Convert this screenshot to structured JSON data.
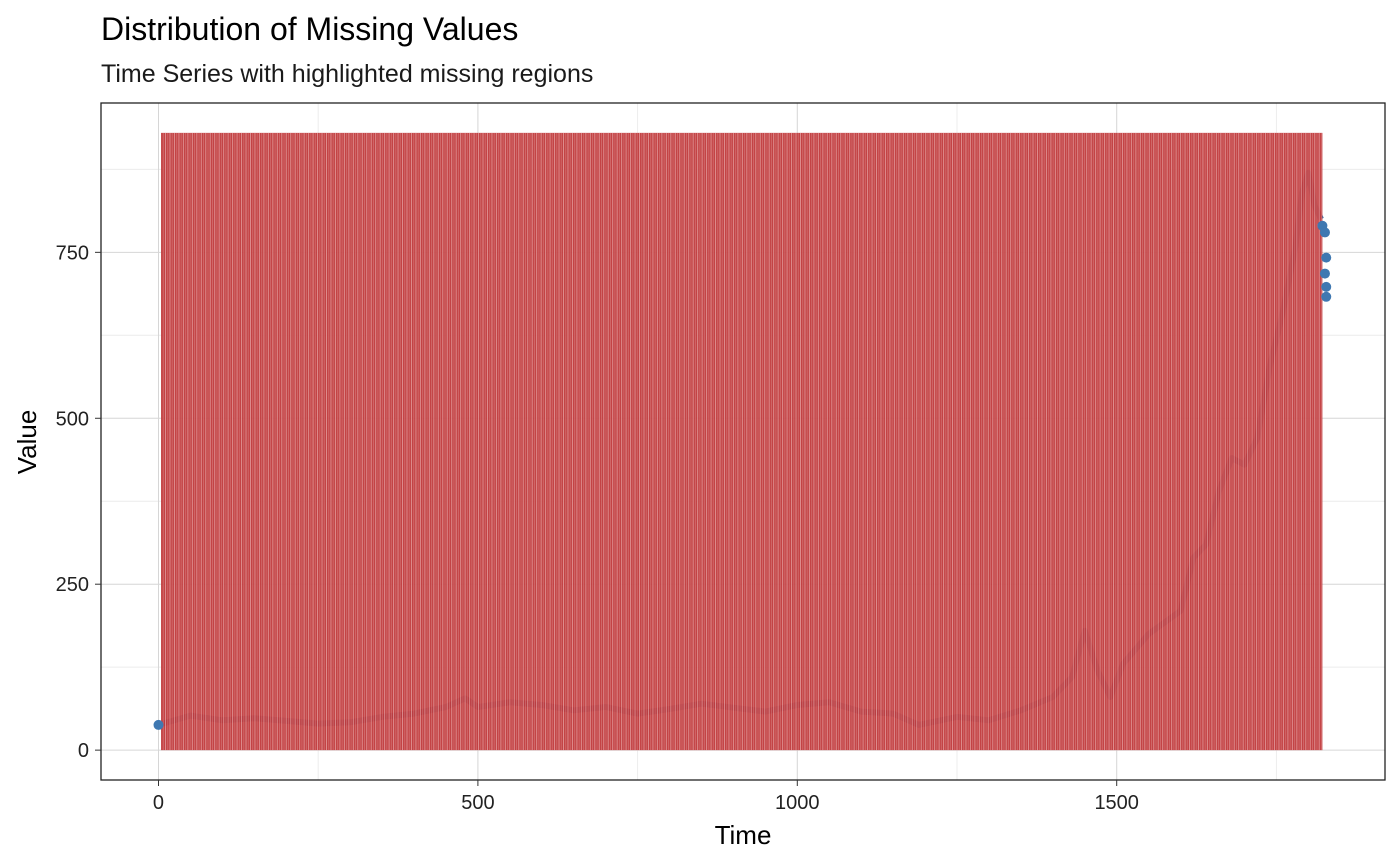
{
  "chart_data": {
    "type": "scatter",
    "title": "Distribution of Missing Values",
    "subtitle": "Time Series with highlighted missing regions",
    "xlabel": "Time",
    "ylabel": "Value",
    "xlim": [
      -90,
      1920
    ],
    "ylim": [
      -45,
      975
    ],
    "x_ticks": [
      0,
      500,
      1000,
      1500
    ],
    "x_tick_labels": [
      "0",
      "500",
      "1000",
      "1500"
    ],
    "y_ticks": [
      0,
      250,
      500,
      750
    ],
    "y_tick_labels": [
      "0",
      "250",
      "500",
      "750"
    ],
    "grid": true,
    "colors": {
      "missing_region": "#c0393b",
      "point": "#3f78b1",
      "background": "#ffffff",
      "grid": "#d6d6d6",
      "grid_minor": "#ececec"
    },
    "missing_regions": {
      "x_start": 4,
      "x_end": 1822,
      "y_top": 930,
      "period": 3.5,
      "gap_period": 7
    },
    "series": [
      {
        "x": [
          0,
          50,
          100,
          150,
          200,
          250,
          300,
          350,
          400,
          450,
          480,
          500,
          550,
          600,
          650,
          700,
          750,
          800,
          850,
          900,
          950,
          1000,
          1050,
          1100,
          1150,
          1190,
          1250,
          1300,
          1350,
          1400,
          1430,
          1450,
          1470,
          1490,
          1510,
          1550,
          1600,
          1620,
          1640,
          1660,
          1680,
          1700,
          1720,
          1740,
          1760,
          1780,
          1790,
          1800,
          1810,
          1820
        ],
        "values": [
          38,
          52,
          45,
          48,
          44,
          40,
          42,
          50,
          55,
          65,
          78,
          65,
          72,
          68,
          60,
          65,
          55,
          62,
          70,
          64,
          58,
          68,
          72,
          58,
          55,
          38,
          50,
          45,
          60,
          80,
          110,
          180,
          120,
          80,
          130,
          175,
          210,
          290,
          310,
          390,
          440,
          430,
          470,
          580,
          660,
          760,
          840,
          870,
          820,
          800
        ],
        "end_points": [
          [
            1822,
            790
          ],
          [
            1826,
            780
          ],
          [
            1828,
            742
          ],
          [
            1826,
            718
          ],
          [
            1828,
            698
          ],
          [
            1828,
            683
          ]
        ]
      }
    ]
  }
}
